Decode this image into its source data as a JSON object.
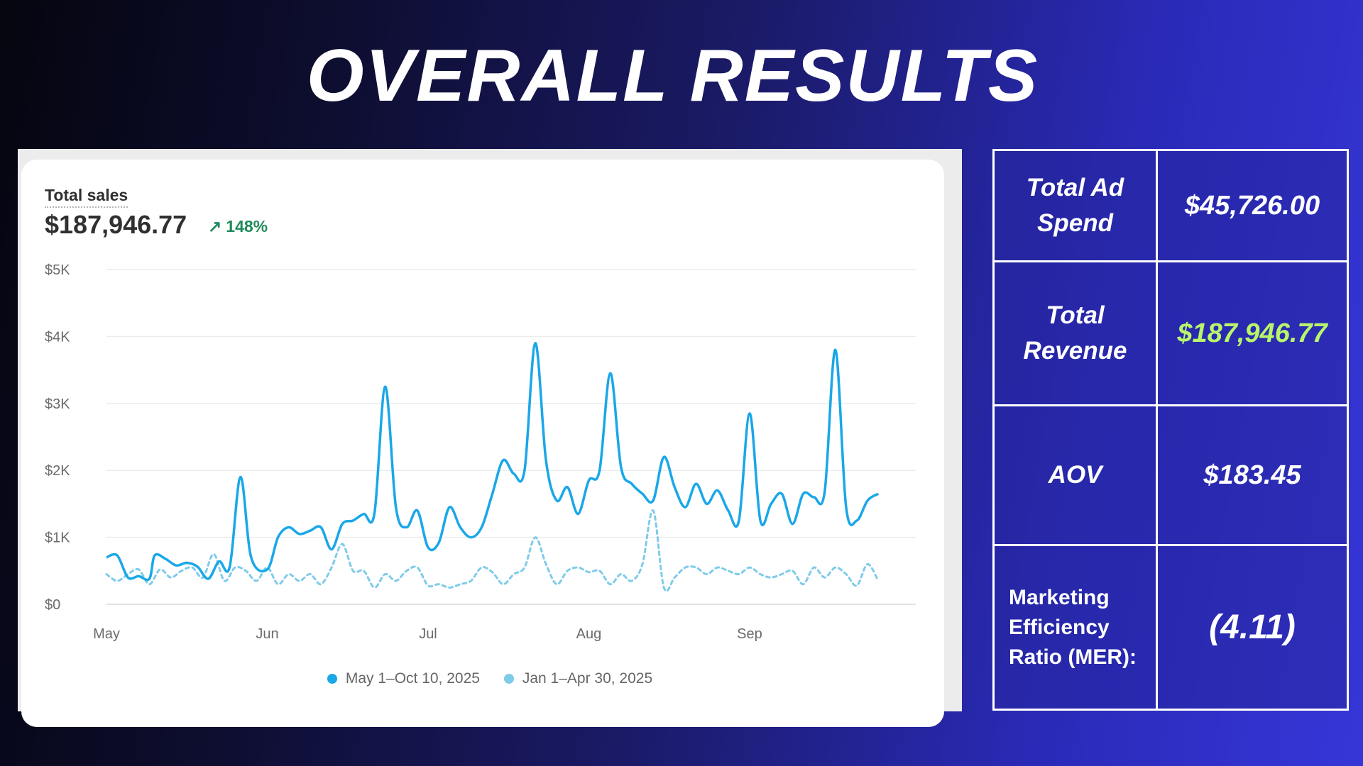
{
  "title": "OVERALL RESULTS",
  "chart_card": {
    "label": "Total sales",
    "total": "$187,946.77",
    "change": "148%",
    "change_icon": "arrow-up-right-icon"
  },
  "metrics": [
    {
      "label": "Total Ad Spend",
      "value": "$45,726.00",
      "value_color": "#ffffff"
    },
    {
      "label": "Total Revenue",
      "value": "$187,946.77",
      "value_color": "#b8f56a"
    },
    {
      "label": "AOV",
      "value": "$183.45",
      "value_color": "#ffffff"
    },
    {
      "label": "Marketing Efficiency Ratio (MER):",
      "value": "(4.11)",
      "value_color": "#ffffff"
    }
  ],
  "colors": {
    "current_series": "#1aa7e8",
    "previous_series": "#7fcbea",
    "positive_change": "#1f8a5b"
  },
  "chart_data": {
    "type": "line",
    "title": "Total sales",
    "xlabel": "",
    "ylabel": "",
    "ylim": [
      0,
      5000
    ],
    "y_ticks": [
      {
        "value": 0,
        "label": "$0"
      },
      {
        "value": 1000,
        "label": "$1K"
      },
      {
        "value": 2000,
        "label": "$2K"
      },
      {
        "value": 3000,
        "label": "$3K"
      },
      {
        "value": 4000,
        "label": "$4K"
      },
      {
        "value": 5000,
        "label": "$5K"
      }
    ],
    "x_range": [
      0,
      151
    ],
    "x_ticks": [
      {
        "value": 0,
        "label": "May"
      },
      {
        "value": 30,
        "label": "Jun"
      },
      {
        "value": 60,
        "label": "Jul"
      },
      {
        "value": 90,
        "label": "Aug"
      },
      {
        "value": 120,
        "label": "Sep"
      }
    ],
    "grid": true,
    "legend_position": "bottom-center",
    "series": [
      {
        "name": "May 1–Oct 10, 2025",
        "style": "solid",
        "points": [
          [
            0,
            700
          ],
          [
            2,
            730
          ],
          [
            4,
            400
          ],
          [
            6,
            420
          ],
          [
            8,
            380
          ],
          [
            9,
            730
          ],
          [
            11,
            680
          ],
          [
            13,
            580
          ],
          [
            15,
            620
          ],
          [
            17,
            560
          ],
          [
            19,
            380
          ],
          [
            21,
            640
          ],
          [
            23,
            560
          ],
          [
            25,
            1900
          ],
          [
            27,
            700
          ],
          [
            30,
            520
          ],
          [
            32,
            1000
          ],
          [
            34,
            1150
          ],
          [
            36,
            1050
          ],
          [
            38,
            1100
          ],
          [
            40,
            1150
          ],
          [
            42,
            820
          ],
          [
            44,
            1200
          ],
          [
            46,
            1250
          ],
          [
            48,
            1350
          ],
          [
            50,
            1360
          ],
          [
            52,
            3250
          ],
          [
            54,
            1450
          ],
          [
            56,
            1150
          ],
          [
            58,
            1400
          ],
          [
            60,
            850
          ],
          [
            62,
            920
          ],
          [
            64,
            1450
          ],
          [
            66,
            1150
          ],
          [
            68,
            1000
          ],
          [
            70,
            1150
          ],
          [
            72,
            1650
          ],
          [
            74,
            2150
          ],
          [
            76,
            1950
          ],
          [
            78,
            2000
          ],
          [
            80,
            3900
          ],
          [
            82,
            2150
          ],
          [
            84,
            1550
          ],
          [
            86,
            1750
          ],
          [
            88,
            1350
          ],
          [
            90,
            1850
          ],
          [
            92,
            2000
          ],
          [
            94,
            3450
          ],
          [
            96,
            2050
          ],
          [
            98,
            1800
          ],
          [
            100,
            1650
          ],
          [
            102,
            1550
          ],
          [
            104,
            2200
          ],
          [
            106,
            1750
          ],
          [
            108,
            1450
          ],
          [
            110,
            1800
          ],
          [
            112,
            1500
          ],
          [
            114,
            1700
          ],
          [
            116,
            1400
          ],
          [
            118,
            1250
          ],
          [
            120,
            2850
          ],
          [
            122,
            1250
          ],
          [
            124,
            1500
          ],
          [
            126,
            1650
          ],
          [
            128,
            1200
          ],
          [
            130,
            1650
          ],
          [
            132,
            1600
          ],
          [
            134,
            1680
          ],
          [
            136,
            3800
          ],
          [
            138,
            1450
          ],
          [
            140,
            1250
          ],
          [
            142,
            1550
          ],
          [
            144,
            1650
          ]
        ]
      },
      {
        "name": "Jan 1–Apr 30, 2025",
        "style": "dashed",
        "points": [
          [
            0,
            450
          ],
          [
            2,
            350
          ],
          [
            4,
            450
          ],
          [
            6,
            520
          ],
          [
            8,
            300
          ],
          [
            10,
            520
          ],
          [
            12,
            400
          ],
          [
            14,
            500
          ],
          [
            16,
            550
          ],
          [
            18,
            400
          ],
          [
            20,
            750
          ],
          [
            22,
            350
          ],
          [
            24,
            550
          ],
          [
            26,
            500
          ],
          [
            28,
            350
          ],
          [
            30,
            550
          ],
          [
            32,
            300
          ],
          [
            34,
            450
          ],
          [
            36,
            350
          ],
          [
            38,
            450
          ],
          [
            40,
            300
          ],
          [
            42,
            550
          ],
          [
            44,
            900
          ],
          [
            46,
            500
          ],
          [
            48,
            500
          ],
          [
            50,
            250
          ],
          [
            52,
            450
          ],
          [
            54,
            350
          ],
          [
            56,
            500
          ],
          [
            58,
            550
          ],
          [
            60,
            280
          ],
          [
            62,
            300
          ],
          [
            64,
            250
          ],
          [
            66,
            300
          ],
          [
            68,
            350
          ],
          [
            70,
            550
          ],
          [
            72,
            480
          ],
          [
            74,
            300
          ],
          [
            76,
            450
          ],
          [
            78,
            550
          ],
          [
            80,
            1000
          ],
          [
            82,
            600
          ],
          [
            84,
            300
          ],
          [
            86,
            500
          ],
          [
            88,
            550
          ],
          [
            90,
            480
          ],
          [
            92,
            500
          ],
          [
            94,
            300
          ],
          [
            96,
            450
          ],
          [
            98,
            350
          ],
          [
            100,
            600
          ],
          [
            102,
            1400
          ],
          [
            104,
            250
          ],
          [
            106,
            400
          ],
          [
            108,
            550
          ],
          [
            110,
            550
          ],
          [
            112,
            450
          ],
          [
            114,
            550
          ],
          [
            116,
            500
          ],
          [
            118,
            450
          ],
          [
            120,
            550
          ],
          [
            122,
            450
          ],
          [
            124,
            400
          ],
          [
            126,
            450
          ],
          [
            128,
            500
          ],
          [
            130,
            300
          ],
          [
            132,
            550
          ],
          [
            134,
            400
          ],
          [
            136,
            550
          ],
          [
            138,
            450
          ],
          [
            140,
            280
          ],
          [
            142,
            600
          ],
          [
            144,
            350
          ]
        ]
      }
    ]
  }
}
